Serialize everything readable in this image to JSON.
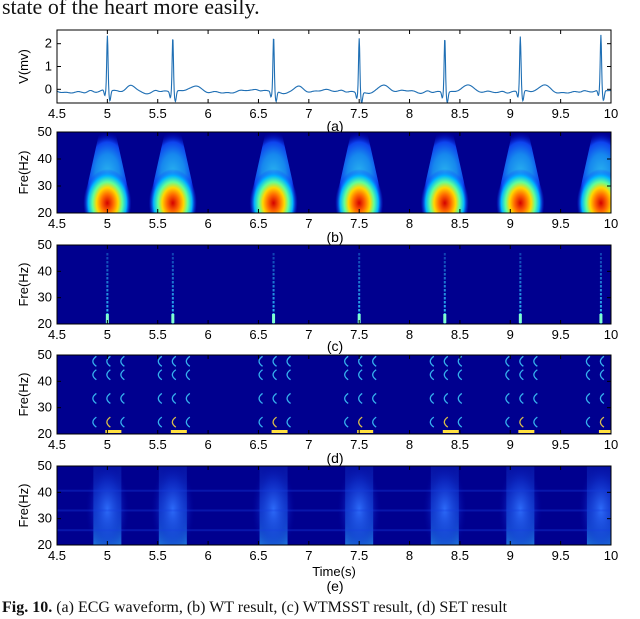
{
  "top_text": "state of the heart more easily.",
  "caption": {
    "label": "Fig. 10.",
    "text": "(a) ECG waveform, (b) WT result, (c) WTMSST result, (d) SET result"
  },
  "colors": {
    "waveform": "#1f6fb4",
    "spectrum_background": "#00008f",
    "heat_low": "#00008f",
    "heat_high": "#d40000"
  },
  "chart_data": [
    {
      "type": "line",
      "panel_label": "(a)",
      "ylabel": "V(mv)",
      "xlim": [
        4.5,
        10
      ],
      "ylim": [
        -0.6,
        2.6
      ],
      "x_ticks": [
        "4.5",
        "5",
        "5.5",
        "6",
        "6.5",
        "7",
        "7.5",
        "8",
        "8.5",
        "9",
        "9.5",
        "10"
      ],
      "y_ticks": [
        "0",
        "1",
        "2"
      ],
      "r_peak_times": [
        5.0,
        5.65,
        6.65,
        7.5,
        8.35,
        9.1,
        9.9
      ],
      "r_peak_amplitude": 2.4,
      "baseline": -0.1
    },
    {
      "type": "heatmap",
      "panel_label": "(b)",
      "ylabel": "Fre(Hz)",
      "xlim": [
        4.5,
        10
      ],
      "ylim": [
        20,
        50
      ],
      "x_ticks": [
        "4.5",
        "5",
        "5.5",
        "6",
        "6.5",
        "7",
        "7.5",
        "8",
        "8.5",
        "9",
        "9.5",
        "10"
      ],
      "y_ticks": [
        "20",
        "30",
        "40",
        "50"
      ],
      "energy_times": [
        5.0,
        5.65,
        6.65,
        7.5,
        8.35,
        9.1,
        9.9
      ]
    },
    {
      "type": "heatmap",
      "panel_label": "(c)",
      "ylabel": "Fre(Hz)",
      "xlim": [
        4.5,
        10
      ],
      "ylim": [
        20,
        50
      ],
      "x_ticks": [
        "4.5",
        "5",
        "5.5",
        "6",
        "6.5",
        "7",
        "7.5",
        "8",
        "8.5",
        "9",
        "9.5",
        "10"
      ],
      "y_ticks": [
        "20",
        "30",
        "40",
        "50"
      ],
      "energy_times": [
        5.0,
        5.65,
        6.65,
        7.5,
        8.35,
        9.1,
        9.9
      ]
    },
    {
      "type": "heatmap",
      "panel_label": "(d)",
      "ylabel": "Fre(Hz)",
      "xlim": [
        4.5,
        10
      ],
      "ylim": [
        20,
        50
      ],
      "x_ticks": [
        "4.5",
        "5",
        "5.5",
        "6",
        "6.5",
        "7",
        "7.5",
        "8",
        "8.5",
        "9",
        "9.5",
        "10"
      ],
      "y_ticks": [
        "20",
        "30",
        "40",
        "50"
      ],
      "energy_times": [
        5.0,
        5.65,
        6.65,
        7.5,
        8.35,
        9.1,
        9.9
      ]
    },
    {
      "type": "heatmap",
      "panel_label": "(e)",
      "ylabel": "Fre(Hz)",
      "xlabel": "Time(s)",
      "xlim": [
        4.5,
        10
      ],
      "ylim": [
        20,
        50
      ],
      "x_ticks": [
        "4.5",
        "5",
        "5.5",
        "6",
        "6.5",
        "7",
        "7.5",
        "8",
        "8.5",
        "9",
        "9.5",
        "10"
      ],
      "y_ticks": [
        "20",
        "30",
        "40",
        "50"
      ],
      "energy_times": [
        5.0,
        5.65,
        6.65,
        7.5,
        8.35,
        9.1,
        9.9
      ]
    }
  ]
}
